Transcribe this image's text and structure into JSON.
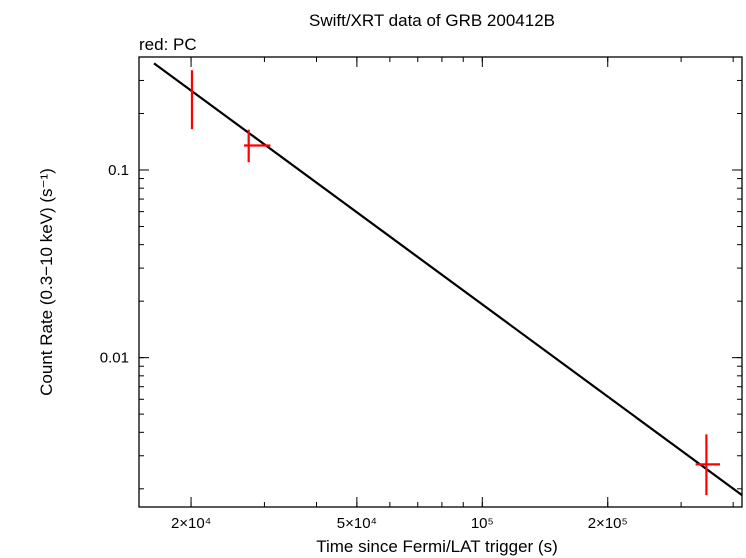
{
  "chart_data": {
    "type": "scatter",
    "title": "Swift/XRT data of GRB 200412B",
    "subtitle": "red: PC",
    "xlabel": "Time since Fermi/LAT trigger (s)",
    "ylabel": "Count Rate (0.3−10 keV) (s⁻¹)",
    "xscale": "log",
    "yscale": "log",
    "xlim": [
      15000,
      420000
    ],
    "ylim": [
      0.0016,
      0.4
    ],
    "x_ticks": [
      {
        "value": 20000,
        "label": "2×10⁴"
      },
      {
        "value": 50000,
        "label": "5×10⁴"
      },
      {
        "value": 100000,
        "label": "10⁵"
      },
      {
        "value": 200000,
        "label": "2×10⁵"
      }
    ],
    "y_ticks": [
      {
        "value": 0.1,
        "label": "0.1"
      },
      {
        "value": 0.01,
        "label": "0.01"
      }
    ],
    "grid": false,
    "series": [
      {
        "name": "PC",
        "color": "#ff0000",
        "points": [
          {
            "x": 20100,
            "y": 0.24,
            "xerr": [
              20000,
              20200
            ],
            "yerr": [
              0.165,
              0.34
            ]
          },
          {
            "x": 27500,
            "y": 0.135,
            "xerr": [
              26800,
              31000
            ],
            "yerr": [
              0.11,
              0.164
            ]
          },
          {
            "x": 345000,
            "y": 0.0027,
            "xerr": [
              325000,
              372000
            ],
            "yerr": [
              0.00185,
              0.0039
            ]
          }
        ]
      }
    ],
    "model_line": {
      "color": "#000000",
      "points": [
        [
          16300,
          0.37
        ],
        [
          420000,
          0.00185
        ]
      ]
    }
  }
}
